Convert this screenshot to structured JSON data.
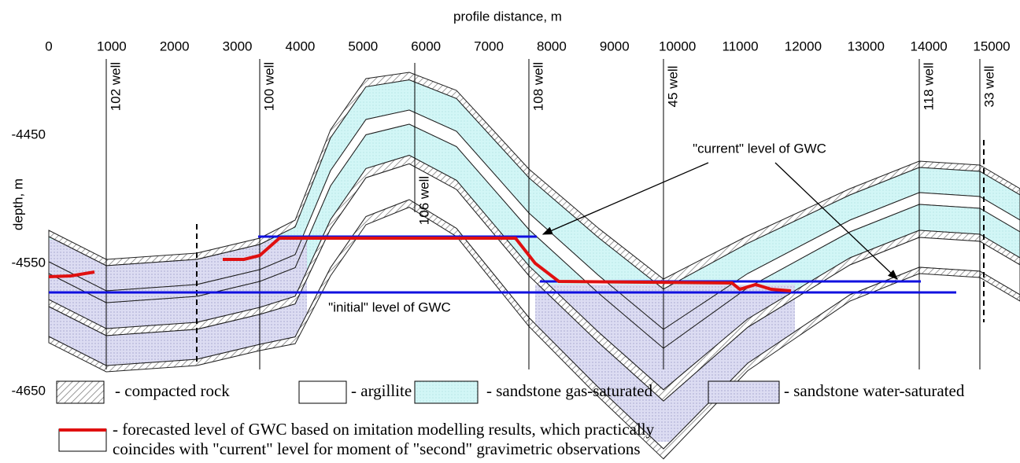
{
  "header": {
    "title": "profile distance, m"
  },
  "x_axis": {
    "ticks": [
      0,
      1000,
      2000,
      3000,
      4000,
      5000,
      6000,
      7000,
      8000,
      9000,
      10000,
      11000,
      12000,
      13000,
      14000,
      15000
    ]
  },
  "y_axis": {
    "label": "depth, m",
    "ticks": [
      -4450,
      -4550,
      -4650
    ]
  },
  "wells": [
    "102 well",
    "100 well",
    "106 well",
    "108 well",
    "45 well",
    "118 well",
    "33 well"
  ],
  "annotations": {
    "current": "\"current\" level of GWC",
    "initial": "\"initial\" level of GWC"
  },
  "legend": {
    "items": [
      "- compacted rock",
      "- argillite",
      "- sandstone gas-saturated",
      "- sandstone water-saturated"
    ],
    "note": [
      "- forecasted level of GWC based on imitation modelling results, which practically",
      "coincides with \"current\" level for moment of \"second\" gravimetric observations"
    ]
  }
}
